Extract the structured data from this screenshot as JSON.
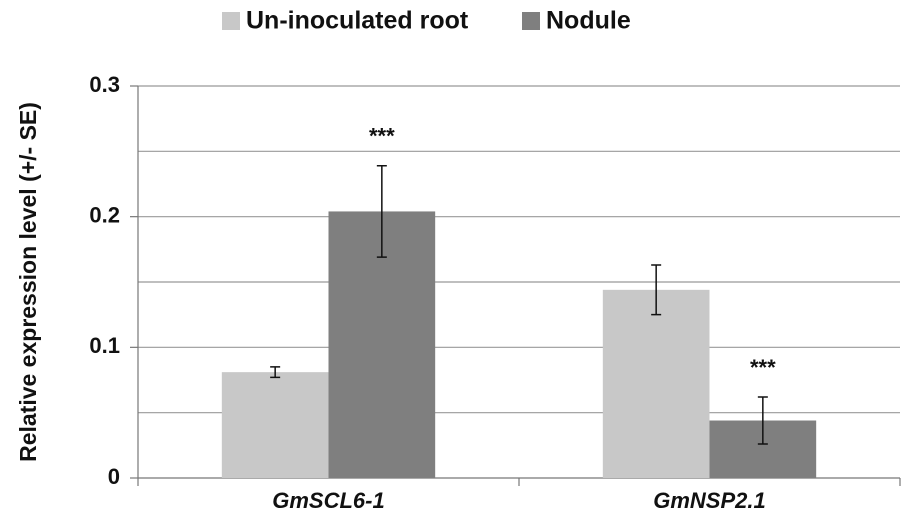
{
  "chart_data": {
    "type": "bar",
    "y_label": "Relative expression level (+/- SE)",
    "categories": [
      "GmSCL6-1",
      "GmNSP2.1"
    ],
    "series": [
      {
        "name": "Un-inoculated root",
        "color": "#c8c8c8",
        "values": [
          0.081,
          0.144
        ],
        "errors": [
          0.004,
          0.019
        ]
      },
      {
        "name": "Nodule",
        "color": "#7f7f7f",
        "values": [
          0.204,
          0.044
        ],
        "errors": [
          0.035,
          0.018
        ],
        "annotations": [
          "***",
          "***"
        ]
      }
    ],
    "ylim": [
      0,
      0.3
    ],
    "yticks": [
      0,
      0.1,
      0.2,
      0.3
    ],
    "minor_yticks": [
      0.05,
      0.15,
      0.25
    ],
    "grid": true,
    "legend": "top"
  }
}
